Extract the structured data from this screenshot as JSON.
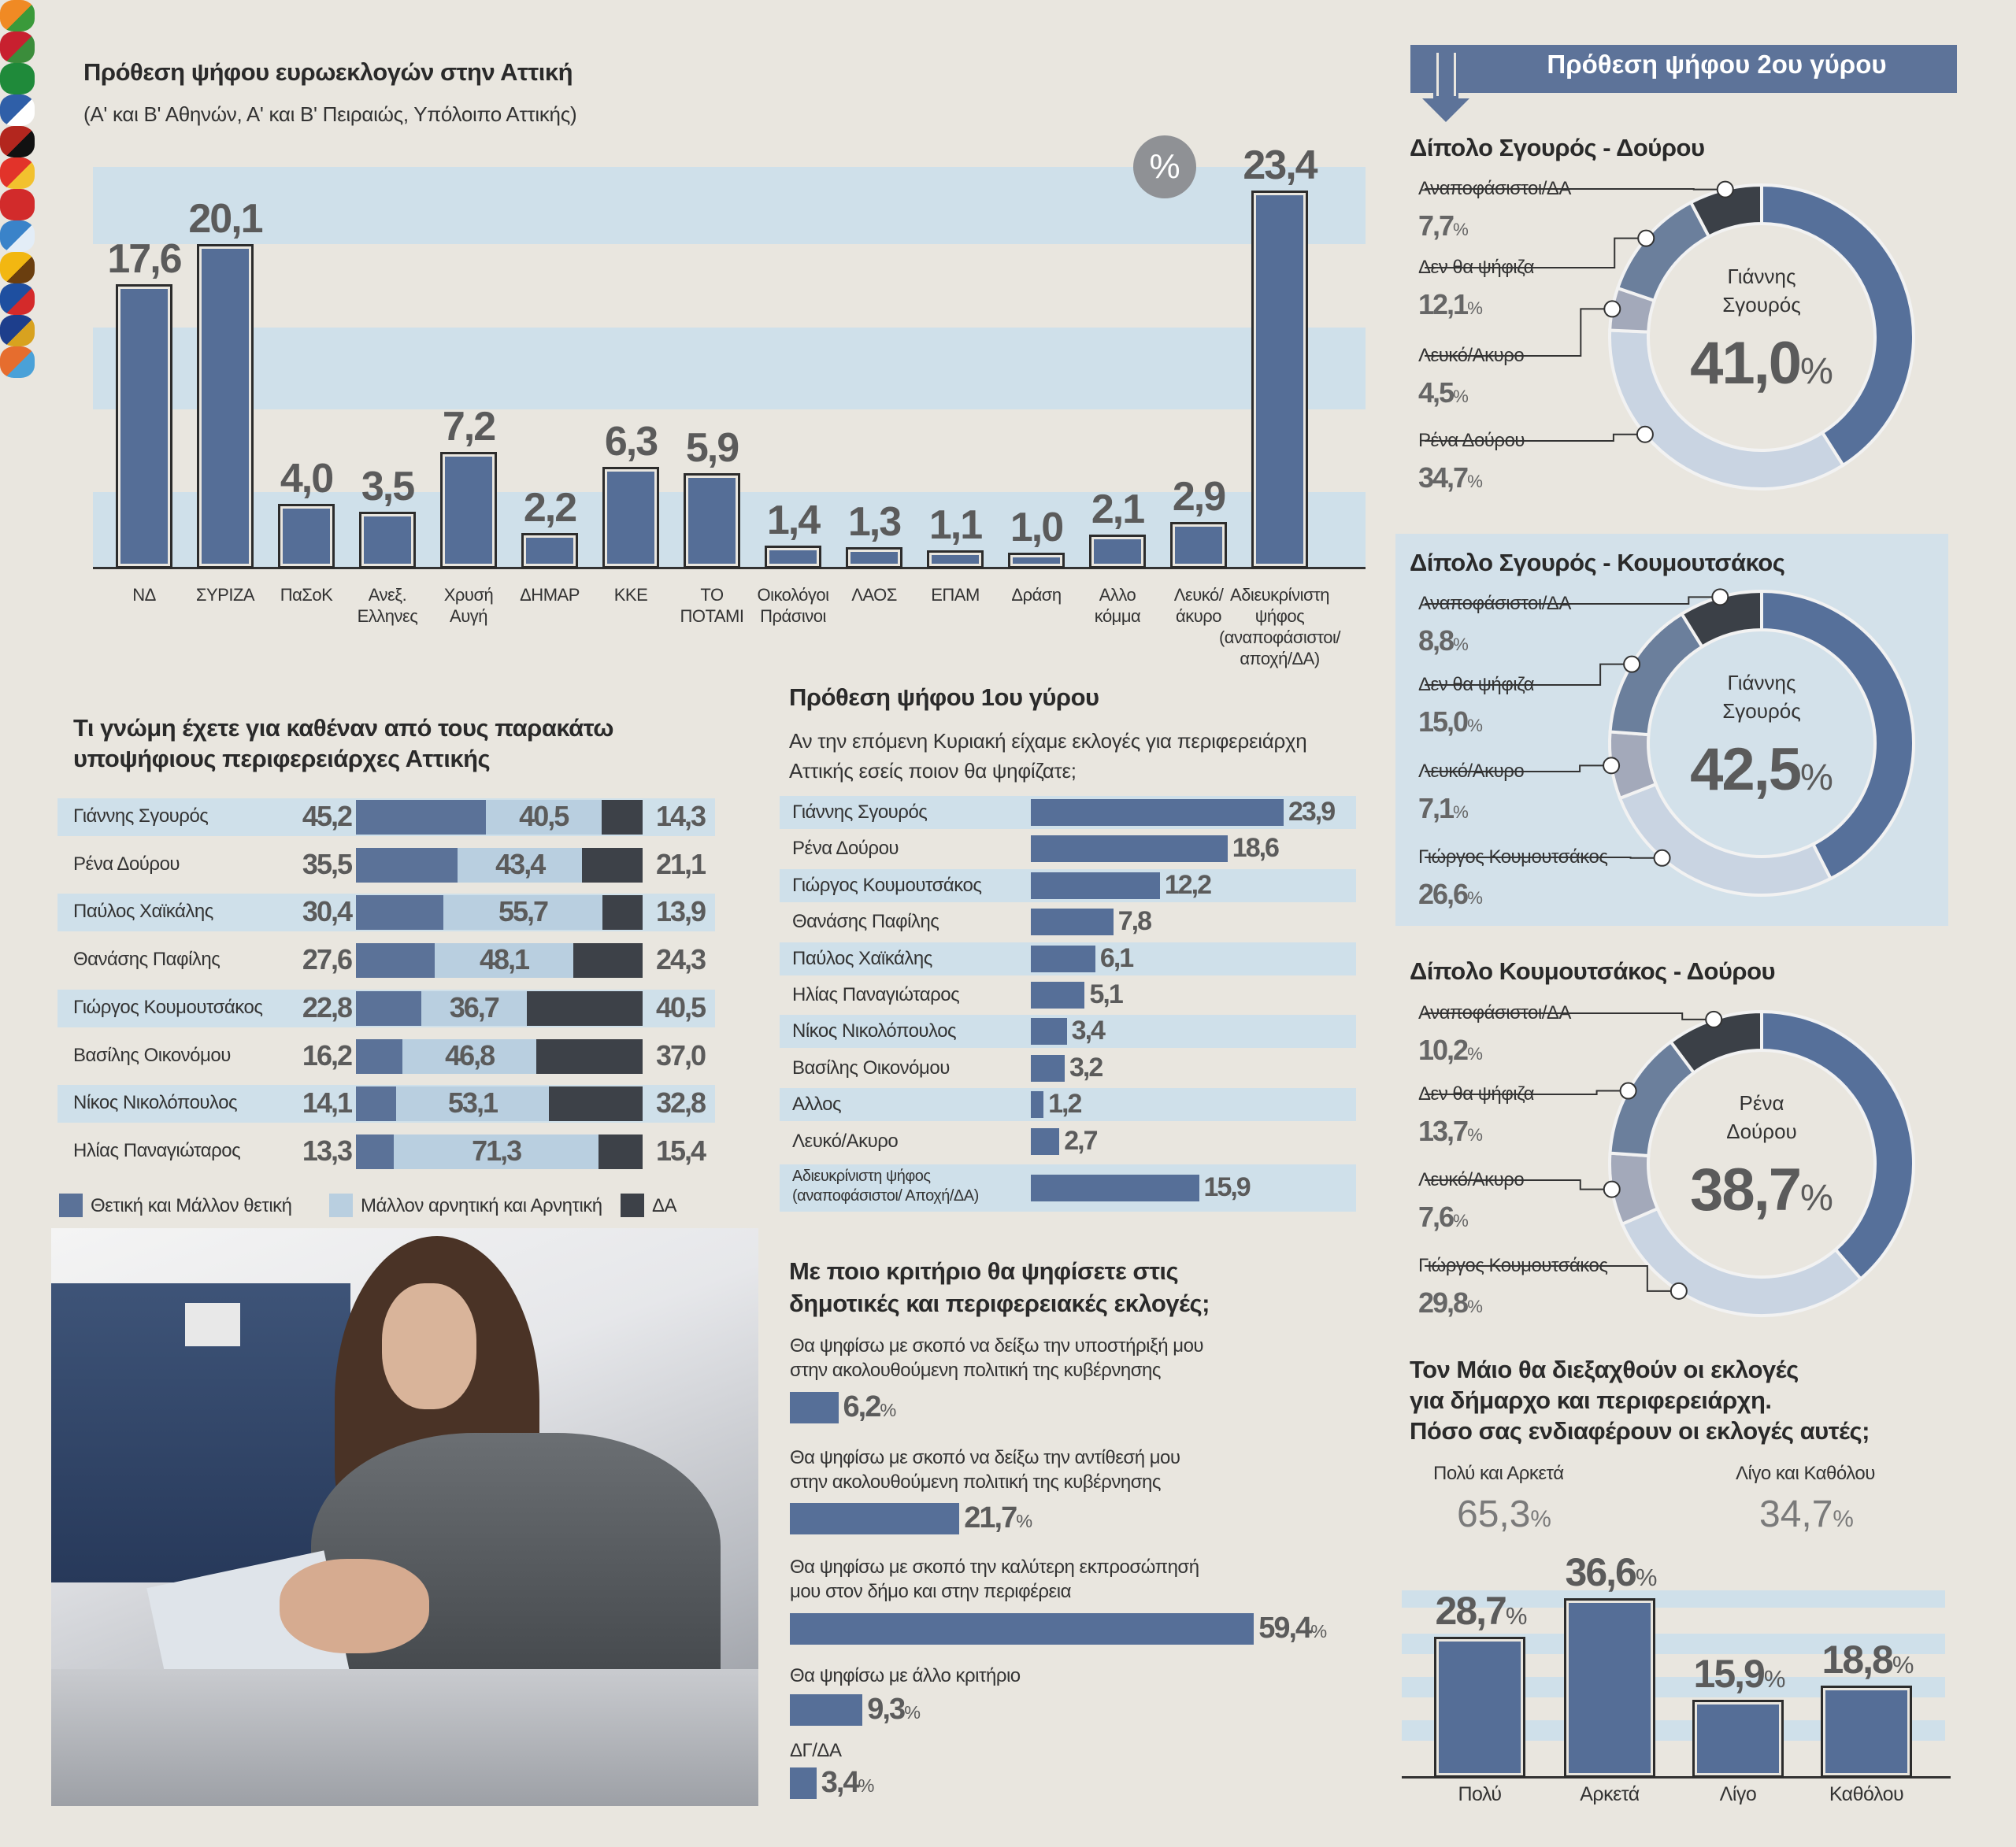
{
  "common": {
    "percent": "%"
  },
  "round2": {
    "header": "Πρόθεση ψήφου 2ου γύρου"
  },
  "chart_data": [
    {
      "type": "bar",
      "title": "Πρόθεση ψήφου ευρωεκλογών στην Αττική",
      "subtitle": "(Α' και Β' Αθηνών, Α' και Β' Πειραιώς, Υπόλοιπο Αττικής)",
      "badge": "%",
      "categories": [
        "ΝΔ",
        "ΣΥΡΙΖΑ",
        "ΠαΣοΚ",
        "Ανεξ.\nΕλληνες",
        "Χρυσή\nΑυγή",
        "ΔΗΜΑΡ",
        "ΚΚΕ",
        "ΤΟ\nΠΟΤΑΜΙ",
        "Οικολόγοι\nΠράσινοι",
        "ΛΑΟΣ",
        "ΕΠΑΜ",
        "Δράση",
        "Αλλο\nκόμμα",
        "Λευκό/\nάκυρο",
        "Αδιευκρίνιστη\nψήφος\n(αναποφάσιστοι/\nαποχή/ΔΑ)"
      ],
      "values": [
        17.6,
        20.1,
        4.0,
        3.5,
        7.2,
        2.2,
        6.3,
        5.9,
        1.4,
        1.3,
        1.1,
        1.0,
        2.1,
        2.9,
        23.4
      ],
      "value_labels": [
        "17,6",
        "20,1",
        "4,0",
        "3,5",
        "7,2",
        "2,2",
        "6,3",
        "5,9",
        "1,4",
        "1,3",
        "1,1",
        "1,0",
        "2,1",
        "2,9",
        "23,4"
      ],
      "logos": [
        {
          "name": "nd",
          "colors": [
            "#f08a24",
            "#3a9a3a"
          ]
        },
        {
          "name": "syriza",
          "colors": [
            "#c8202f",
            "#3b8d3b"
          ]
        },
        {
          "name": "pasok",
          "colors": [
            "#1f8a3a",
            "#1f8a3a"
          ]
        },
        {
          "name": "anel",
          "colors": [
            "#2f5fa8",
            "#ffffff"
          ]
        },
        {
          "name": "golden-dawn",
          "colors": [
            "#b3261e",
            "#111111"
          ]
        },
        {
          "name": "dimar",
          "colors": [
            "#e2332a",
            "#f2c12e"
          ]
        },
        {
          "name": "kke",
          "colors": [
            "#d22b2b",
            "#d22b2b"
          ]
        },
        {
          "name": "potami",
          "colors": [
            "#3a83c9",
            "#e3edf7"
          ]
        },
        {
          "name": "ecogreens",
          "colors": [
            "#f2b711",
            "#6a3e0f"
          ]
        },
        {
          "name": "laos",
          "colors": [
            "#1e4fa0",
            "#d42a2a"
          ]
        },
        {
          "name": "epam",
          "colors": [
            "#1d3e8c",
            "#d8a21f"
          ]
        },
        {
          "name": "drasi",
          "colors": [
            "#e66d2e",
            "#4aa1d8"
          ]
        },
        null,
        null,
        null
      ],
      "ylim": [
        0,
        25
      ]
    },
    {
      "type": "bar",
      "stacked": true,
      "title": "Τι γνώμη έχετε για καθέναν από τους παρακάτω\nυποψήφιους περιφερειάρχες Αττικής",
      "series": [
        "Θετική και Μάλλον θετική",
        "Μάλλον αρνητική και Αρνητική",
        "ΔΑ"
      ],
      "colors": [
        "#5b7298",
        "#b9cfe0",
        "#3d4148"
      ],
      "rows": [
        {
          "name": "Γιάννης Σγουρός",
          "values": [
            45.2,
            40.5,
            14.3
          ],
          "labels": [
            "45,2",
            "40,5",
            "14,3"
          ]
        },
        {
          "name": "Ρένα Δούρου",
          "values": [
            35.5,
            43.4,
            21.1
          ],
          "labels": [
            "35,5",
            "43,4",
            "21,1"
          ]
        },
        {
          "name": "Παύλος Χαϊκάλης",
          "values": [
            30.4,
            55.7,
            13.9
          ],
          "labels": [
            "30,4",
            "55,7",
            "13,9"
          ]
        },
        {
          "name": "Θανάσης Παφίλης",
          "values": [
            27.6,
            48.1,
            24.3
          ],
          "labels": [
            "27,6",
            "48,1",
            "24,3"
          ]
        },
        {
          "name": "Γιώργος Κουμουτσάκος",
          "values": [
            22.8,
            36.7,
            40.5
          ],
          "labels": [
            "22,8",
            "36,7",
            "40,5"
          ]
        },
        {
          "name": "Βασίλης Οικονόμου",
          "values": [
            16.2,
            46.8,
            37.0
          ],
          "labels": [
            "16,2",
            "46,8",
            "37,0"
          ]
        },
        {
          "name": "Νίκος Νικολόπουλος",
          "values": [
            14.1,
            53.1,
            32.8
          ],
          "labels": [
            "14,1",
            "53,1",
            "32,8"
          ]
        },
        {
          "name": "Ηλίας Παναγιώταρος",
          "values": [
            13.3,
            71.3,
            15.4
          ],
          "labels": [
            "13,3",
            "71,3",
            "15,4"
          ]
        }
      ]
    },
    {
      "type": "bar",
      "title": "Πρόθεση ψήφου 1ου γύρου",
      "subtitle": "Αν την επόμενη Κυριακή είχαμε εκλογές για περιφερειάρχη\nΑττικής εσείς ποιον θα ψηφίζατε;",
      "categories": [
        "Γιάννης Σγουρός",
        "Ρένα Δούρου",
        "Γιώργος Κουμουτσάκος",
        "Θανάσης Παφίλης",
        "Παύλος Χαϊκάλης",
        "Ηλίας Παναγιώταρος",
        "Νίκος Νικολόπουλος",
        "Βασίλης Οικονόμου",
        "Αλλος",
        "Λευκό/Ακυρο",
        "Αδιευκρίνιστη ψήφος\n(αναποφάσιστοι/ Αποχή/ΔΑ)"
      ],
      "values": [
        23.9,
        18.6,
        12.2,
        7.8,
        6.1,
        5.1,
        3.4,
        3.2,
        1.2,
        2.7,
        15.9
      ],
      "value_labels": [
        "23,9",
        "18,6",
        "12,2",
        "7,8",
        "6,1",
        "5,1",
        "3,4",
        "3,2",
        "1,2",
        "2,7",
        "15,9"
      ]
    },
    {
      "type": "bar",
      "title": "Με ποιο κριτήριο θα ψηφίσετε στις\nδημοτικές και περιφερειακές εκλογές;",
      "categories": [
        "Θα ψηφίσω με σκοπό να δείξω την υποστήριξή μου\nστην ακολουθούμενη πολιτική της κυβέρνησης",
        "Θα ψηφίσω με σκοπό να δείξω την αντίθεσή μου\nστην ακολουθούμενη πολιτική της κυβέρνησης",
        "Θα ψηφίσω με σκοπό την καλύτερη εκπροσώπησή\nμου στον δήμο και στην περιφέρεια",
        "Θα ψηφίσω με άλλο κριτήριο",
        "ΔΓ/ΔΑ"
      ],
      "values": [
        6.2,
        21.7,
        59.4,
        9.3,
        3.4
      ],
      "value_labels": [
        "6,2",
        "21,7",
        "59,4",
        "9,3",
        "3,4"
      ]
    },
    {
      "type": "pie",
      "title": "Δίπολο Σγουρός - Δούρου",
      "center_label": "Γιάννης\nΣγουρός",
      "center_value": "41,0",
      "slices": [
        {
          "label": "Γιάννης Σγουρός",
          "value": 41.0,
          "value_label": "41,0",
          "color": "#56709a"
        },
        {
          "label": "Ρένα Δούρου",
          "value": 34.7,
          "value_label": "34,7",
          "color": "#c9d4e2"
        },
        {
          "label": "Λευκό/Ακυρο",
          "value": 4.5,
          "value_label": "4,5",
          "color": "#a3a9ba"
        },
        {
          "label": "Δεν θα ψήφιζα",
          "value": 12.1,
          "value_label": "12,1",
          "color": "#6b7f9c"
        },
        {
          "label": "Αναποφάσιστοι/ΔΑ",
          "value": 7.7,
          "value_label": "7,7",
          "color": "#3b4047"
        }
      ]
    },
    {
      "type": "pie",
      "title": "Δίπολο Σγουρός - Κουμουτσάκος",
      "center_label": "Γιάννης\nΣγουρός",
      "center_value": "42,5",
      "slices": [
        {
          "label": "Γιάννης Σγουρός",
          "value": 42.5,
          "value_label": "42,5",
          "color": "#56709a"
        },
        {
          "label": "Γιώργος Κουμουτσάκος",
          "value": 26.6,
          "value_label": "26,6",
          "color": "#c9d4e2"
        },
        {
          "label": "Λευκό/Ακυρο",
          "value": 7.1,
          "value_label": "7,1",
          "color": "#a3a9ba"
        },
        {
          "label": "Δεν θα ψήφιζα",
          "value": 15.0,
          "value_label": "15,0",
          "color": "#6b7f9c"
        },
        {
          "label": "Αναποφάσιστοι/ΔΑ",
          "value": 8.8,
          "value_label": "8,8",
          "color": "#3b4047"
        }
      ]
    },
    {
      "type": "pie",
      "title": "Δίπολο Κουμουτσάκος - Δούρου",
      "center_label": "Ρένα\nΔούρου",
      "center_value": "38,7",
      "slices": [
        {
          "label": "Ρένα Δούρου",
          "value": 38.7,
          "value_label": "38,7",
          "color": "#56709a"
        },
        {
          "label": "Γιώργος Κουμουτσάκος",
          "value": 29.8,
          "value_label": "29,8",
          "color": "#c9d4e2"
        },
        {
          "label": "Λευκό/Ακυρο",
          "value": 7.6,
          "value_label": "7,6",
          "color": "#a3a9ba"
        },
        {
          "label": "Δεν θα ψήφιζα",
          "value": 13.7,
          "value_label": "13,7",
          "color": "#6b7f9c"
        },
        {
          "label": "Αναποφάσιστοι/ΔΑ",
          "value": 10.2,
          "value_label": "10,2",
          "color": "#3b4047"
        }
      ]
    },
    {
      "type": "bar",
      "title": "Τον Μάιο θα διεξαχθούν οι εκλογές\nγια δήμαρχο και περιφερειάρχη.\nΠόσο σας ενδιαφέρουν οι εκλογές αυτές;",
      "groups": [
        {
          "label": "Πολύ και Αρκετά",
          "total": "65,3"
        },
        {
          "label": "Λίγο και Καθόλου",
          "total": "34,7"
        }
      ],
      "categories": [
        "Πολύ",
        "Αρκετά",
        "Λίγο",
        "Καθόλου"
      ],
      "values": [
        28.7,
        36.6,
        15.9,
        18.8
      ],
      "value_labels": [
        "28,7",
        "36,6",
        "15,9",
        "18,8"
      ],
      "ylim": [
        0,
        40
      ]
    }
  ]
}
